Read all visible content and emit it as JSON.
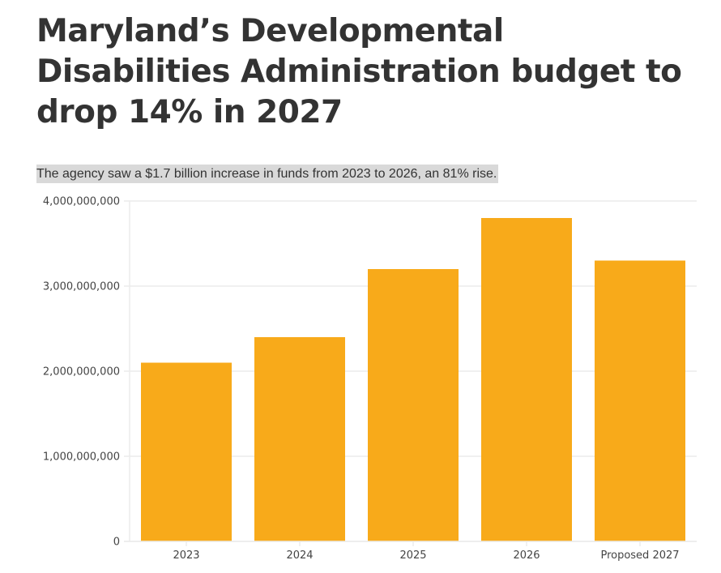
{
  "header": {
    "title": "Maryland’s Developmental Disabilities Administration budget to drop 14% in 2027",
    "subtitle": "The agency saw a $1.7 billion increase in funds from 2023 to 2026, an 81% rise."
  },
  "colors": {
    "bar": "#f8aa1a",
    "grid": "#ececec",
    "subtitle_highlight": "#d9d9d9",
    "text": "#333333"
  },
  "chart_data": {
    "type": "bar",
    "title": "Maryland’s Developmental Disabilities Administration budget to drop 14% in 2027",
    "subtitle": "The agency saw a $1.7 billion increase in funds from 2023 to 2026, an 81% rise.",
    "categories": [
      "2023",
      "2024",
      "2025",
      "2026",
      "Proposed 2027"
    ],
    "values": [
      2100000000,
      2400000000,
      3200000000,
      3800000000,
      3300000000
    ],
    "xlabel": "",
    "ylabel": "",
    "ylim": [
      0,
      4000000000
    ],
    "yticks": [
      0,
      1000000000,
      2000000000,
      3000000000,
      4000000000
    ],
    "ytick_labels": [
      "0",
      "1,000,000,000",
      "2,000,000,000",
      "3,000,000,000",
      "4,000,000,000"
    ],
    "grid": true,
    "legend": "none"
  }
}
